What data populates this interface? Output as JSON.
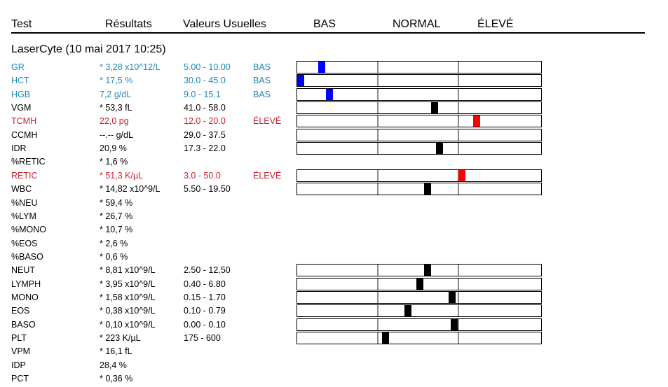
{
  "header": {
    "test": "Test",
    "results": "Résultats",
    "ranges": "Valeurs Usuelles",
    "low": "BAS",
    "normal": "NORMAL",
    "high": "ÉLEVÉ"
  },
  "section_title": "LaserCyte (10 mai 2017 10:25)",
  "colors": {
    "low": "#1f87b8",
    "high": "#d0202f",
    "normal": "#000000",
    "marker_low": "#0000ff",
    "marker_high": "#ff0000",
    "marker_normal": "#000000"
  },
  "rows": [
    {
      "test": "GR",
      "result": "* 3,28 x10^12/L",
      "range": "5.00 - 10.00",
      "flag": "BAS",
      "status": "low",
      "level": 0.1
    },
    {
      "test": "HCT",
      "result": "* 17,5 %",
      "range": "30.0 - 45.0",
      "flag": "BAS",
      "status": "low",
      "level": 0.01
    },
    {
      "test": "HGB",
      "result": "7,2 g/dL",
      "range": "9.0 - 15.1",
      "flag": "BAS",
      "status": "low",
      "level": 0.13
    },
    {
      "test": "VGM",
      "result": "* 53,3 fL",
      "range": "41.0 - 58.0",
      "flag": "",
      "status": "normal",
      "level": 0.56
    },
    {
      "test": "TCMH",
      "result": "22,0 pg",
      "range": "12.0 - 20.0",
      "flag": "ÉLEVÉ",
      "status": "high",
      "level": 0.73
    },
    {
      "test": "CCMH",
      "result": "--.-- g/dL",
      "range": "29.0 - 37.5",
      "flag": "",
      "status": "normal",
      "level": null
    },
    {
      "test": "IDR",
      "result": "20,9 %",
      "range": "17.3 - 22.0",
      "flag": "",
      "status": "normal",
      "level": 0.58
    },
    {
      "test": "%RETIC",
      "result": "* 1,6 %",
      "range": "",
      "flag": "",
      "status": "normal",
      "level": null
    },
    {
      "test": "RETIC",
      "result": "* 51,3 K/µL",
      "range": "3.0 - 50.0",
      "flag": "ÉLEVÉ",
      "status": "high",
      "level": 0.67
    },
    {
      "test": "WBC",
      "result": "* 14,82 x10^9/L",
      "range": "5.50 - 19.50",
      "flag": "",
      "status": "normal",
      "level": 0.53
    },
    {
      "test": "%NEU",
      "result": "* 59,4 %",
      "range": "",
      "flag": "",
      "status": "normal",
      "level": null
    },
    {
      "test": "%LYM",
      "result": "* 26,7 %",
      "range": "",
      "flag": "",
      "status": "normal",
      "level": null
    },
    {
      "test": "%MONO",
      "result": "* 10,7 %",
      "range": "",
      "flag": "",
      "status": "normal",
      "level": null
    },
    {
      "test": "%EOS",
      "result": "* 2,6 %",
      "range": "",
      "flag": "",
      "status": "normal",
      "level": null
    },
    {
      "test": "%BASO",
      "result": "* 0,6 %",
      "range": "",
      "flag": "",
      "status": "normal",
      "level": null
    },
    {
      "test": "NEUT",
      "result": "* 8,81 x10^9/L",
      "range": "2.50 - 12.50",
      "flag": "",
      "status": "normal",
      "level": 0.53
    },
    {
      "test": "LYMPH",
      "result": "* 3,95 x10^9/L",
      "range": "0.40 - 6.80",
      "flag": "",
      "status": "normal",
      "level": 0.5
    },
    {
      "test": "MONO",
      "result": "* 1,58 x10^9/L",
      "range": "0.15 - 1.70",
      "flag": "",
      "status": "normal",
      "level": 0.63
    },
    {
      "test": "EOS",
      "result": "* 0,38 x10^9/L",
      "range": "0.10 - 0.79",
      "flag": "",
      "status": "normal",
      "level": 0.45
    },
    {
      "test": "BASO",
      "result": "* 0,10 x10^9/L",
      "range": "0.00 - 0.10",
      "flag": "",
      "status": "normal",
      "level": 0.64
    },
    {
      "test": "PLT",
      "result": "* 223 K/µL",
      "range": "175 - 600",
      "flag": "",
      "status": "normal",
      "level": 0.36
    },
    {
      "test": "VPM",
      "result": "* 16,1 fL",
      "range": "",
      "flag": "",
      "status": "normal",
      "level": null
    },
    {
      "test": "IDP",
      "result": "28,4 %",
      "range": "",
      "flag": "",
      "status": "normal",
      "level": null
    },
    {
      "test": "PCT",
      "result": "* 0,36 %",
      "range": "",
      "flag": "",
      "status": "normal",
      "level": null
    }
  ]
}
